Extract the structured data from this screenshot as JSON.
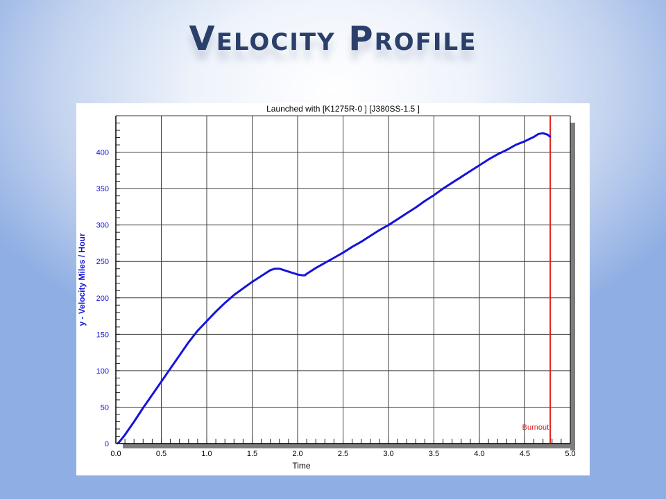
{
  "slide": {
    "title": "Velocity Profile"
  },
  "chart_data": {
    "type": "line",
    "title": "Launched with [K1275R-0   ] [J380SS-1.5 ]",
    "xlabel": "Time",
    "ylabel": "y - Velocity Miles / Hour",
    "xlim": [
      0,
      5.0
    ],
    "ylim": [
      0,
      450
    ],
    "xticks": [
      "0.0",
      "0.5",
      "1.0",
      "1.5",
      "2.0",
      "2.5",
      "3.0",
      "3.5",
      "4.0",
      "4.5",
      "5.0"
    ],
    "yticks": [
      "0",
      "50",
      "100",
      "150",
      "200",
      "250",
      "300",
      "350",
      "400"
    ],
    "grid": true,
    "series": [
      {
        "color": "#1414d8",
        "x": [
          0.02,
          0.05,
          0.1,
          0.2,
          0.3,
          0.4,
          0.5,
          0.6,
          0.7,
          0.8,
          0.9,
          1.0,
          1.1,
          1.2,
          1.3,
          1.4,
          1.5,
          1.6,
          1.7,
          1.75,
          1.8,
          1.85,
          1.9,
          1.95,
          2.0,
          2.05,
          2.08,
          2.1,
          2.2,
          2.3,
          2.4,
          2.5,
          2.6,
          2.7,
          2.8,
          2.9,
          3.0,
          3.1,
          3.2,
          3.3,
          3.4,
          3.5,
          3.6,
          3.7,
          3.8,
          3.9,
          4.0,
          4.1,
          4.2,
          4.3,
          4.4,
          4.5,
          4.55,
          4.6,
          4.65,
          4.7,
          4.75,
          4.78
        ],
        "y": [
          0,
          4,
          12,
          30,
          49,
          67,
          85,
          103,
          121,
          139,
          155,
          168,
          181,
          193,
          204,
          213,
          222,
          230,
          238,
          240,
          240,
          238,
          236,
          234,
          232,
          231,
          231,
          233,
          241,
          248,
          255,
          262,
          270,
          277,
          285,
          293,
          300,
          308,
          316,
          324,
          333,
          341,
          350,
          358,
          366,
          374,
          382,
          390,
          397,
          403,
          410,
          415,
          418,
          421,
          425,
          426,
          424,
          421
        ]
      }
    ],
    "annotations": [
      {
        "label": "Burnout",
        "x": 4.78,
        "color": "#e01e1e"
      }
    ]
  }
}
